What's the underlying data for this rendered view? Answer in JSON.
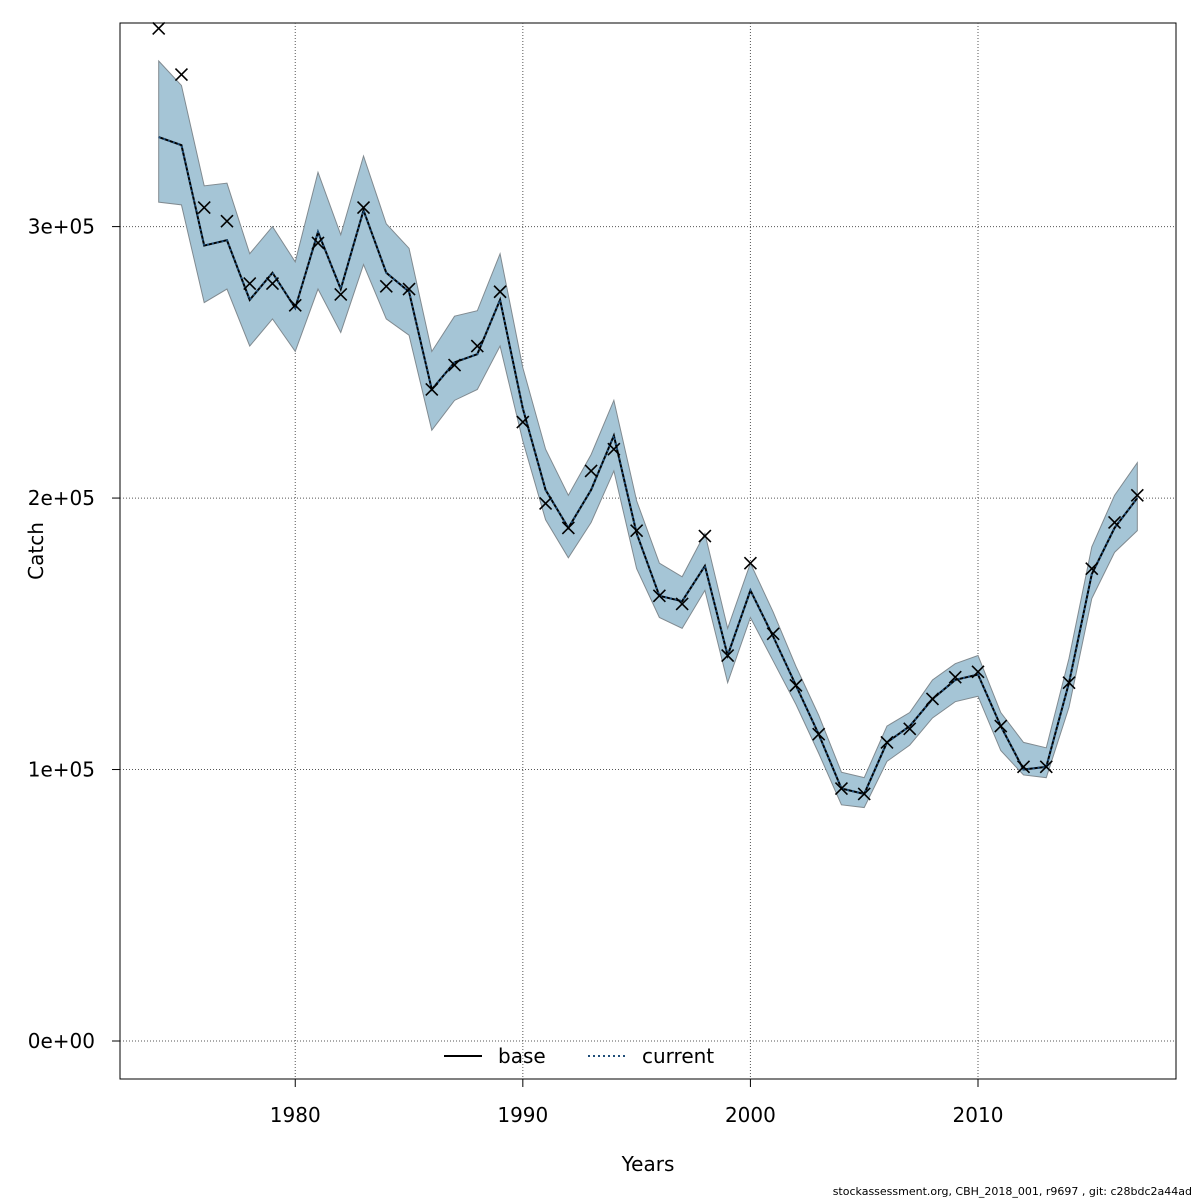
{
  "chart_data": {
    "type": "line",
    "xlabel": "Years",
    "ylabel": "Catch",
    "xlim": [
      1972.3,
      2018.7
    ],
    "ylim": [
      -14000,
      375000
    ],
    "xticks": [
      1980,
      1990,
      2000,
      2010
    ],
    "xtick_labels": [
      "1980",
      "1990",
      "2000",
      "2010"
    ],
    "yticks": [
      0,
      100000,
      200000,
      300000
    ],
    "ytick_labels": [
      "0e+00",
      "1e+05",
      "2e+05",
      "3e+05"
    ],
    "grid": true,
    "legend_placement": "bottom",
    "x": [
      1974,
      1975,
      1976,
      1977,
      1978,
      1979,
      1980,
      1981,
      1982,
      1983,
      1984,
      1985,
      1986,
      1987,
      1988,
      1989,
      1990,
      1991,
      1992,
      1993,
      1994,
      1995,
      1996,
      1997,
      1998,
      1999,
      2000,
      2001,
      2002,
      2003,
      2004,
      2005,
      2006,
      2007,
      2008,
      2009,
      2010,
      2011,
      2012,
      2013,
      2014,
      2015,
      2016,
      2017
    ],
    "series": [
      {
        "name": "base",
        "style": "solid",
        "color": "#000000",
        "values": [
          333000,
          330000,
          293000,
          295000,
          273000,
          283000,
          270000,
          298000,
          277000,
          306000,
          283000,
          276000,
          240000,
          250000,
          253000,
          273000,
          233000,
          203000,
          189000,
          203000,
          223000,
          187000,
          164000,
          162000,
          175000,
          142000,
          166000,
          149000,
          131000,
          113000,
          93000,
          91000,
          110000,
          116000,
          126000,
          133000,
          135000,
          116000,
          100000,
          101000,
          132000,
          172000,
          189000,
          200000
        ]
      },
      {
        "name": "current",
        "style": "dotted",
        "color": "#1f4e79",
        "values": [
          333000,
          330000,
          293000,
          295000,
          273000,
          283000,
          270000,
          298000,
          277000,
          306000,
          283000,
          276000,
          240000,
          250000,
          253000,
          273000,
          233000,
          203000,
          189000,
          203000,
          223000,
          187000,
          164000,
          162000,
          175000,
          142000,
          166000,
          149000,
          131000,
          113000,
          93000,
          91000,
          110000,
          116000,
          126000,
          133000,
          135000,
          116000,
          100000,
          101000,
          132000,
          172000,
          189000,
          200000
        ]
      }
    ],
    "band_upper": [
      361000,
      352000,
      315000,
      316000,
      290000,
      300000,
      287000,
      320000,
      297000,
      326000,
      301000,
      292000,
      254000,
      267000,
      269000,
      290000,
      248000,
      218000,
      201000,
      216000,
      236000,
      199000,
      176000,
      171000,
      187000,
      152000,
      176000,
      158000,
      138000,
      120000,
      99000,
      97000,
      116000,
      121000,
      133000,
      139000,
      142000,
      121000,
      110000,
      108000,
      141000,
      182000,
      201000,
      213000
    ],
    "band_lower": [
      309000,
      308000,
      272000,
      277000,
      256000,
      266000,
      254000,
      277000,
      261000,
      286000,
      266000,
      260000,
      225000,
      236000,
      240000,
      256000,
      221000,
      192000,
      178000,
      191000,
      210000,
      174000,
      156000,
      152000,
      166000,
      132000,
      156000,
      140000,
      124000,
      106000,
      87000,
      86000,
      103000,
      109000,
      119000,
      125000,
      127000,
      107000,
      98000,
      97000,
      123000,
      163000,
      180000,
      188000
    ],
    "observed_marker": "x",
    "observed": [
      373000,
      356000,
      307000,
      302000,
      279000,
      279000,
      271000,
      294000,
      275000,
      307000,
      278000,
      277000,
      240000,
      249000,
      256000,
      276000,
      228000,
      198000,
      189000,
      210000,
      218000,
      188000,
      164000,
      161000,
      186000,
      142000,
      176000,
      150000,
      131000,
      113000,
      93000,
      91000,
      110000,
      115000,
      126000,
      134000,
      136000,
      116000,
      101000,
      101000,
      132000,
      174000,
      191000,
      201000
    ],
    "band_color": "#a5c5d6",
    "band_stroke": "#808a90"
  },
  "legend": {
    "items": [
      {
        "label": "base"
      },
      {
        "label": "current"
      }
    ]
  },
  "footer": "stockassessment.org, CBH_2018_001, r9697 , git: c28bdc2a44ad"
}
